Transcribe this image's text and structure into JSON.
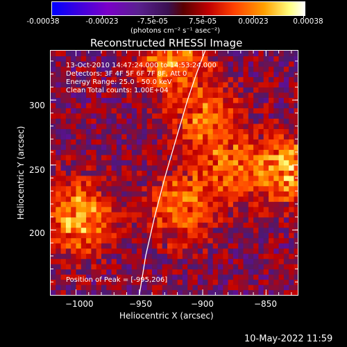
{
  "colorbar": {
    "ticks": [
      "-0.00038",
      "-0.00023",
      "-7.5e-05",
      "7.5e-05",
      "0.00023",
      "0.00038"
    ],
    "units": "(photons cm⁻² s⁻¹ asec⁻²)"
  },
  "chart_data": {
    "type": "heatmap",
    "title": "Reconstructed RHESSI Image",
    "xlabel": "Heliocentric X (arcsec)",
    "ylabel": "Heliocentric Y (arcsec)",
    "xlim": [
      -1020,
      -825
    ],
    "ylim": [
      150,
      338
    ],
    "x_ticks": [
      -1000,
      -950,
      -900,
      -850
    ],
    "y_ticks": [
      200,
      250,
      300
    ],
    "x_tick_labels": [
      "−1000",
      "−950",
      "−900",
      "−850"
    ],
    "y_tick_labels": [
      "200",
      "250",
      "300"
    ],
    "value_range": [
      -0.00038,
      0.00038
    ],
    "colormap": [
      "#0000ff",
      "#7a00c8",
      "#4b1a70",
      "#c00000",
      "#ff4000",
      "#ffa000",
      "#ffff80",
      "#ffffff"
    ],
    "limb_curve": [
      [
        -950,
        150
      ],
      [
        -945,
        180
      ],
      [
        -938,
        210
      ],
      [
        -930,
        240
      ],
      [
        -921,
        270
      ],
      [
        -912,
        300
      ],
      [
        -905,
        320
      ],
      [
        -898,
        338
      ]
    ],
    "bright_regions": [
      {
        "x": -1000,
        "y": 208,
        "value": 0.00035
      },
      {
        "x": -835,
        "y": 245,
        "value": 0.00033
      },
      {
        "x": -900,
        "y": 285,
        "value": 0.00025
      },
      {
        "x": -920,
        "y": 215,
        "value": 0.00027
      },
      {
        "x": -880,
        "y": 245,
        "value": 0.00022
      },
      {
        "x": -925,
        "y": 330,
        "value": 0.0003
      }
    ],
    "annotations": [
      "13-Oct-2010 14:47:24.000 to 14:53:24.000",
      "Detectors: 3F 4F 5F 6F 7F 8F, Att 0",
      "Energy Range: 25.0 - 50.0 keV",
      "Clean    Total counts: 1.00E+04",
      "Position of Peak = [-995,206]"
    ]
  },
  "footer": {
    "date": "10-May-2022 11:59"
  }
}
